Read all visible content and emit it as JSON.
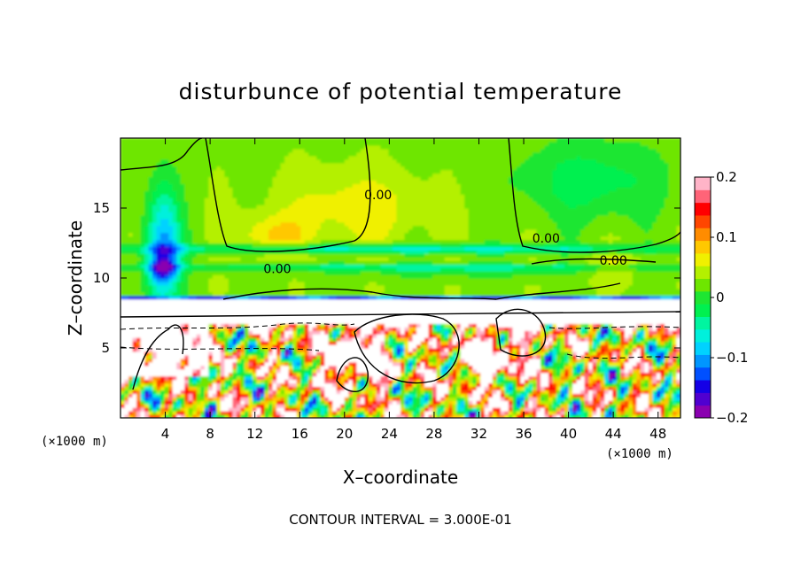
{
  "chart_data": {
    "type": "heatmap",
    "title": "disturbunce of potential temperature",
    "xlabel": "X–coordinate",
    "ylabel": "Z–coordinate",
    "x_unit_left": "(×1000 m)",
    "x_unit_right": "(×1000 m)",
    "xlim": [
      0,
      50
    ],
    "ylim": [
      0,
      20
    ],
    "x_ticks": [
      4,
      8,
      12,
      16,
      20,
      24,
      28,
      32,
      36,
      40,
      44,
      48
    ],
    "x_tick_labels": [
      "4",
      "8",
      "12",
      "16",
      "20",
      "24",
      "28",
      "32",
      "36",
      "40",
      "44",
      "48"
    ],
    "y_ticks": [
      5,
      10,
      15
    ],
    "y_tick_labels": [
      "5",
      "10",
      "15"
    ],
    "colorbar": {
      "range": [
        -0.2,
        0.2
      ],
      "ticks": [
        -0.2,
        -0.1,
        0,
        0.1,
        0.2
      ],
      "tick_labels": [
        "−0.2",
        "−0.1",
        "0",
        "0.1",
        "0.2"
      ],
      "colors": [
        "#8a00b0",
        "#5000d0",
        "#1400e6",
        "#0050ff",
        "#0096ff",
        "#00d2ff",
        "#00f0dc",
        "#00f5a0",
        "#00f050",
        "#1ee632",
        "#6ee600",
        "#b4f000",
        "#f0f000",
        "#ffc800",
        "#ff8c00",
        "#ff4600",
        "#ff0000",
        "#ff6478",
        "#ffb4c8"
      ]
    },
    "contour_labels": [
      {
        "text": "0.00",
        "x": 14,
        "z": 10.4
      },
      {
        "text": "0.00",
        "x": 38,
        "z": 12.6
      },
      {
        "text": "0.00",
        "x": 44,
        "z": 11.0
      },
      {
        "text": "0.00",
        "x": 23,
        "z": 15.7
      }
    ],
    "contour_interval": "CONTOUR INTERVAL = 3.000E‑01",
    "grid": false,
    "legend": "colorbar-right"
  }
}
